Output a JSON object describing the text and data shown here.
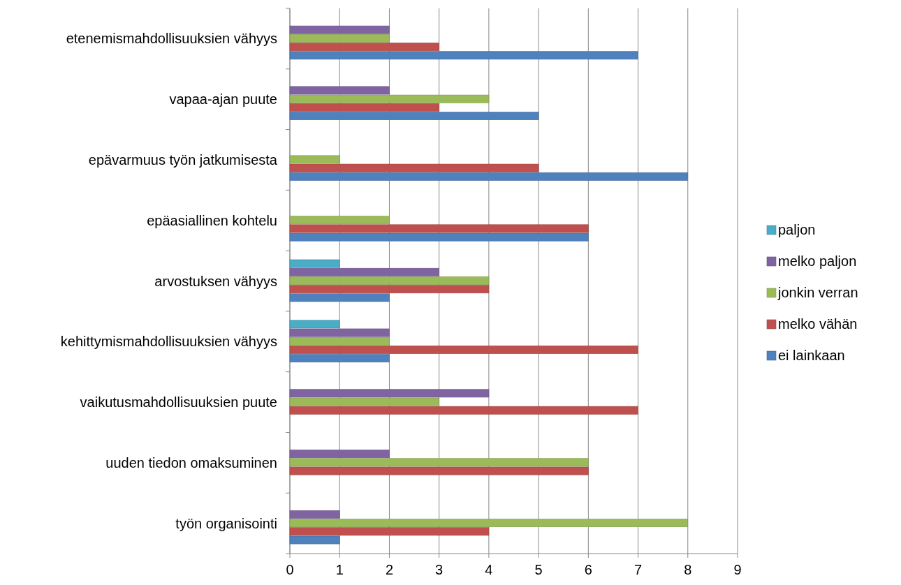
{
  "chart_data": {
    "type": "bar",
    "orientation": "horizontal",
    "categories": [
      "etenemismahdollisuuksien vähyys",
      "vapaa-ajan puute",
      "epävarmuus työn jatkumisesta",
      "epäasiallinen kohtelu",
      "arvostuksen vähyys",
      "kehittymismahdollisuuksien vähyys",
      "vaikutusmahdollisuuksien puute",
      "uuden tiedon omaksuminen",
      "työn organisointi"
    ],
    "series": [
      {
        "name": "ei lainkaan",
        "color": "#4f81bd",
        "values": [
          7,
          5,
          8,
          6,
          2,
          2,
          0,
          0,
          1
        ]
      },
      {
        "name": "melko vähän",
        "color": "#c0504d",
        "values": [
          3,
          3,
          5,
          6,
          4,
          7,
          7,
          6,
          4
        ]
      },
      {
        "name": "jonkin verran",
        "color": "#9bbb59",
        "values": [
          2,
          4,
          1,
          2,
          4,
          2,
          3,
          6,
          8
        ]
      },
      {
        "name": "melko paljon",
        "color": "#8064a2",
        "values": [
          2,
          2,
          0,
          0,
          3,
          2,
          4,
          2,
          1
        ]
      },
      {
        "name": "paljon",
        "color": "#4bacc6",
        "values": [
          0,
          0,
          0,
          0,
          1,
          1,
          0,
          0,
          0
        ]
      }
    ],
    "xlim": [
      0,
      9
    ],
    "xticks": [
      0,
      1,
      2,
      3,
      4,
      5,
      6,
      7,
      8,
      9
    ],
    "grid": "x",
    "legend": "right"
  }
}
